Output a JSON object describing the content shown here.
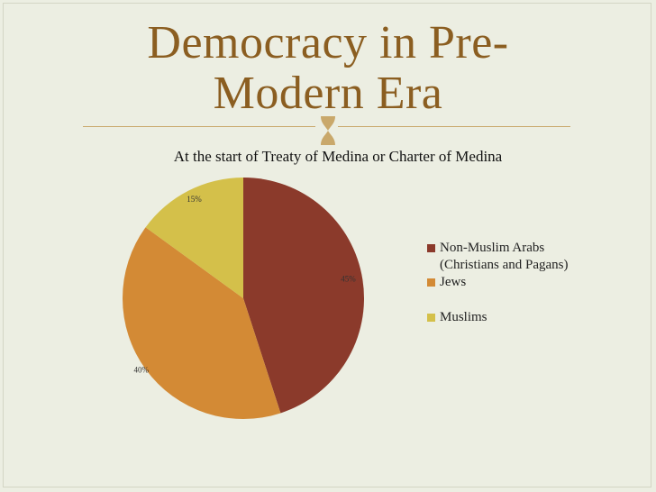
{
  "slide": {
    "title_line1": "Democracy in Pre-",
    "title_line2": "Modern Era"
  },
  "chart_data": {
    "type": "pie",
    "title": "At the start of Treaty of Medina or Charter of Medina",
    "slices": [
      {
        "label": "Non-Muslim Arabs (Christians and Pagans)",
        "value": 45,
        "display": "45%",
        "color": "#8b3a2b"
      },
      {
        "label": "Jews",
        "value": 40,
        "display": "40%",
        "color": "#d38a35"
      },
      {
        "label": "Muslims",
        "value": 15,
        "display": "15%",
        "color": "#d4c04a"
      }
    ],
    "legend_position": "right",
    "legend": [
      {
        "line1": "Non-Muslim Arabs",
        "line2": "(Christians and Pagans)",
        "color": "#8b3a2b"
      },
      {
        "line1": "Jews",
        "line2": "",
        "color": "#d38a35"
      },
      {
        "line1": "Muslims",
        "line2": "",
        "color": "#d4c04a"
      }
    ]
  }
}
